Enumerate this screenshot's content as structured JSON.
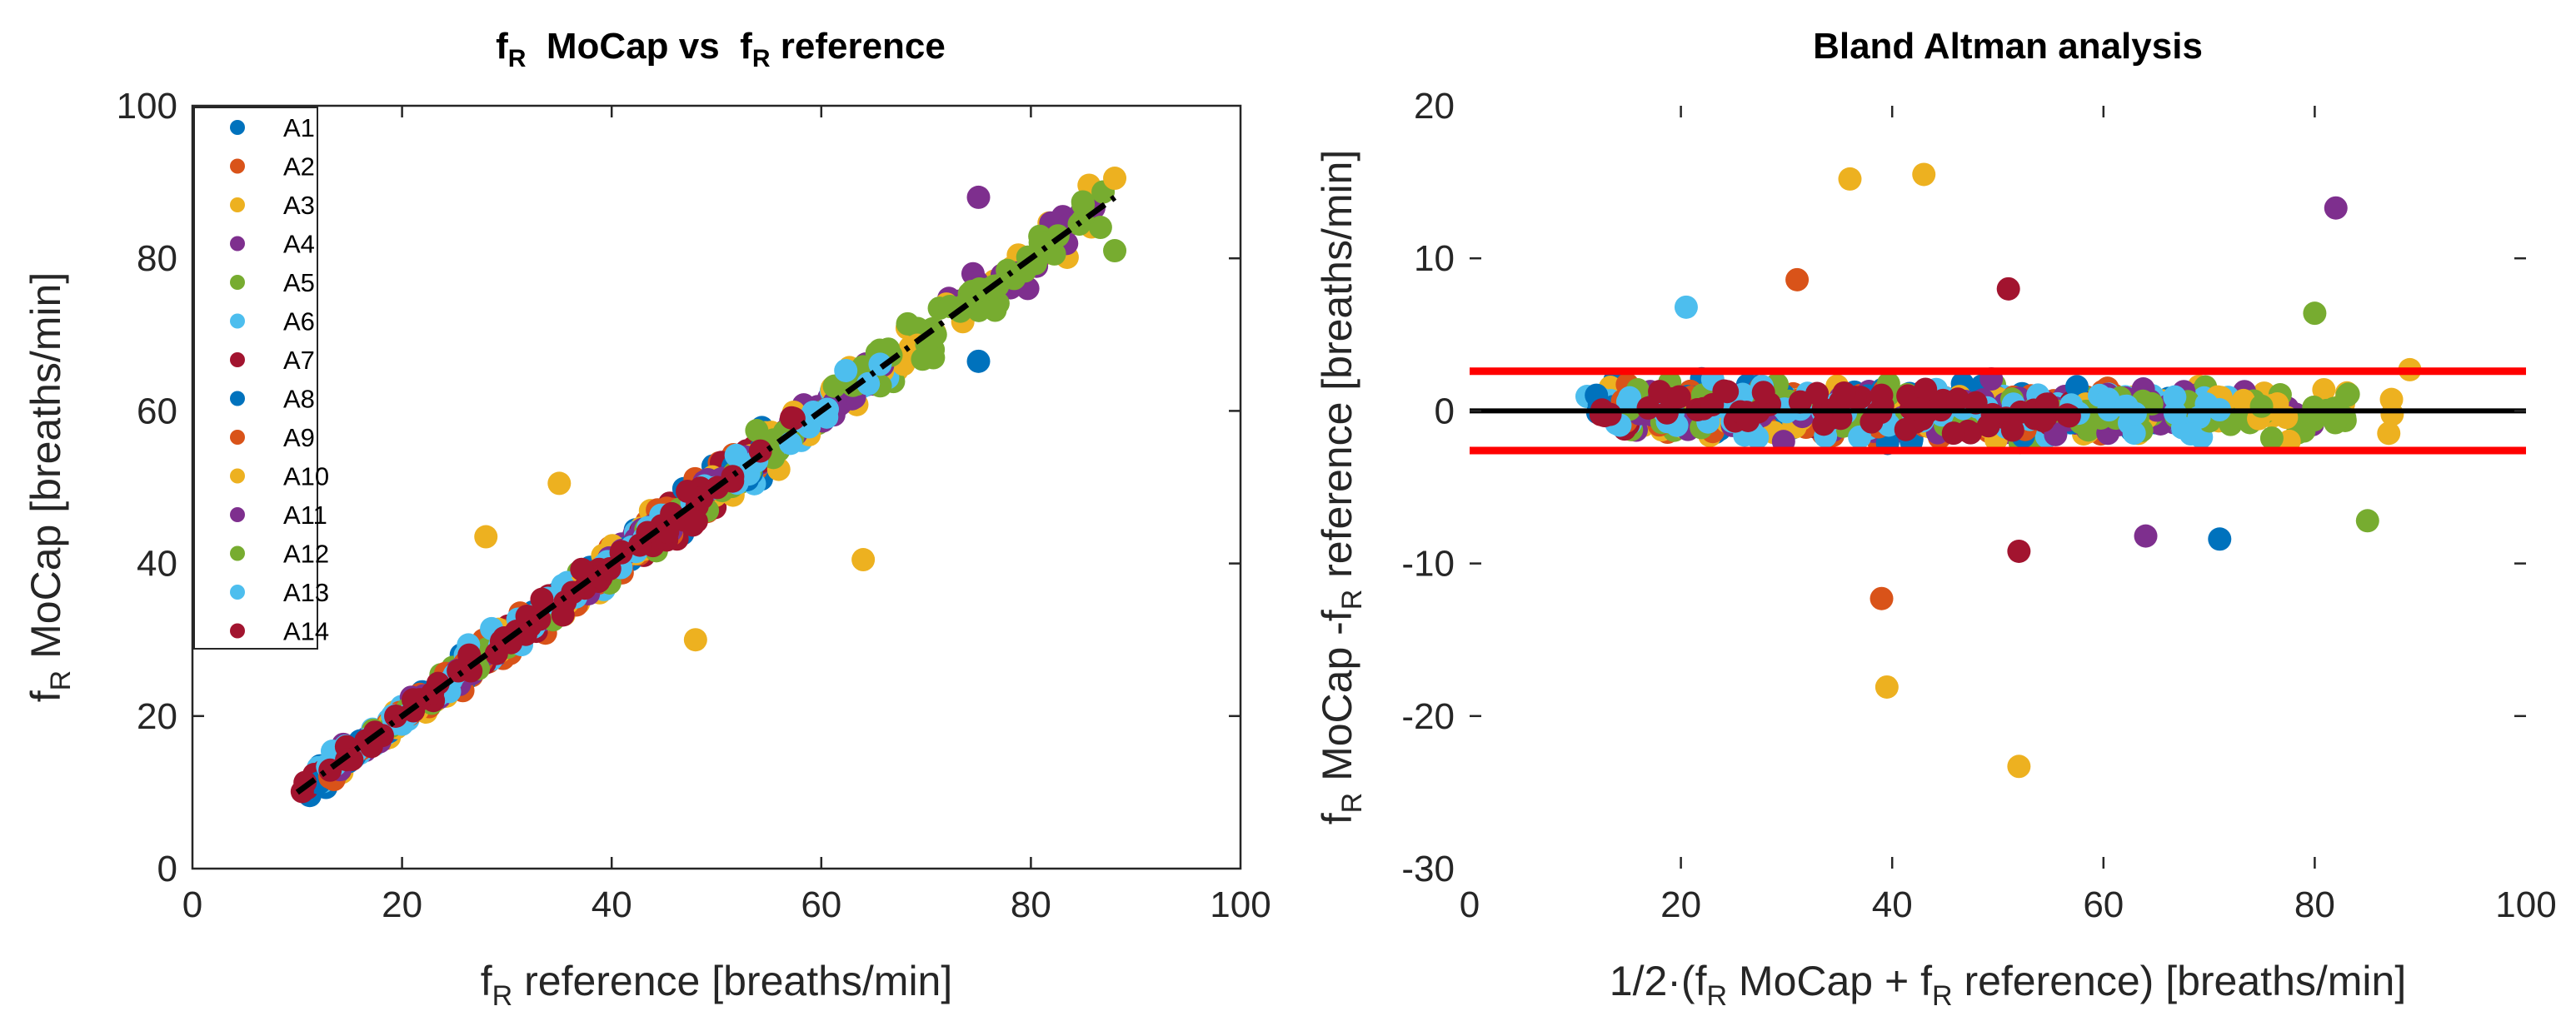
{
  "palette": [
    "#0072BD",
    "#D95319",
    "#EDB120",
    "#7E2F8E",
    "#77AC30",
    "#4DBEEE",
    "#A2142F"
  ],
  "chart_data": [
    {
      "type": "scatter",
      "id": "left",
      "title": {
        "main": "f",
        "sub": "R",
        "mid": "  MoCap vs  ",
        "main2": "f",
        "sub2": "R",
        "end": " reference"
      },
      "xlabel": {
        "main": "f",
        "sub": "R",
        "rest": " reference [breaths/min]"
      },
      "ylabel": {
        "main": "f",
        "sub": "R",
        "rest": " MoCap [breaths/min]"
      },
      "xlim": [
        0,
        100
      ],
      "ylim": [
        0,
        100
      ],
      "xticks": [
        0,
        20,
        40,
        60,
        80,
        100
      ],
      "yticks": [
        0,
        20,
        40,
        60,
        80,
        100
      ],
      "grid": false,
      "legend": {
        "position": "top-left",
        "entries": [
          "A1",
          "A2",
          "A3",
          "A4",
          "A5",
          "A6",
          "A7",
          "A8",
          "A9",
          "A10",
          "A11",
          "A12",
          "A13",
          "A14"
        ]
      },
      "identity_line": {
        "x": [
          10,
          88
        ],
        "y": [
          10,
          88
        ],
        "style": "dash-dot"
      },
      "outliers": [
        {
          "x": 35,
          "y": 50.5,
          "series": "A3"
        },
        {
          "x": 28,
          "y": 43.5,
          "series": "A3"
        },
        {
          "x": 64,
          "y": 40.5,
          "series": "A3"
        },
        {
          "x": 48,
          "y": 30,
          "series": "A3"
        },
        {
          "x": 75,
          "y": 88,
          "series": "A4"
        },
        {
          "x": 88,
          "y": 81,
          "series": "A5"
        },
        {
          "x": 75,
          "y": 66.5,
          "series": "A1"
        },
        {
          "x": 88,
          "y": 90.5,
          "series": "A3"
        }
      ]
    },
    {
      "type": "scatter",
      "id": "right",
      "title": "Bland Altman analysis",
      "xlabel": {
        "p1": "1/2·(f",
        "s1": "R",
        "p2": " MoCap + f",
        "s2": "R",
        "p3": " reference)  [breaths/min]"
      },
      "ylabel": {
        "main": "f",
        "sub": "R",
        "mid": " MoCap -f",
        "sub2": "R",
        "rest": " reference  [breaths/min]"
      },
      "xlim": [
        0,
        100
      ],
      "ylim": [
        -30,
        20
      ],
      "xticks": [
        0,
        20,
        40,
        60,
        80,
        100
      ],
      "yticks": [
        -30,
        -20,
        -10,
        0,
        10,
        20
      ],
      "grid": false,
      "mean_bias": 0,
      "limits_of_agreement": [
        2.6,
        -2.6
      ],
      "outliers": [
        {
          "x": 36,
          "y": 15.2,
          "series": "A3"
        },
        {
          "x": 43,
          "y": 15.5,
          "series": "A3"
        },
        {
          "x": 82,
          "y": 13.3,
          "series": "A4"
        },
        {
          "x": 52,
          "y": -23.3,
          "series": "A3"
        },
        {
          "x": 39.5,
          "y": -18.1,
          "series": "A3"
        },
        {
          "x": 39,
          "y": -12.3,
          "series": "A2"
        },
        {
          "x": 71,
          "y": -8.4,
          "series": "A1"
        },
        {
          "x": 85,
          "y": -7.2,
          "series": "A5"
        },
        {
          "x": 52,
          "y": -9.2,
          "series": "A7"
        },
        {
          "x": 64,
          "y": -8.2,
          "series": "A4"
        },
        {
          "x": 80,
          "y": 6.4,
          "series": "A5"
        },
        {
          "x": 31,
          "y": 8.6,
          "series": "A2"
        },
        {
          "x": 51,
          "y": 8,
          "series": "A7"
        },
        {
          "x": 20.5,
          "y": 6.8,
          "series": "A6"
        },
        {
          "x": 89,
          "y": 2.7,
          "series": "A3"
        }
      ]
    }
  ]
}
